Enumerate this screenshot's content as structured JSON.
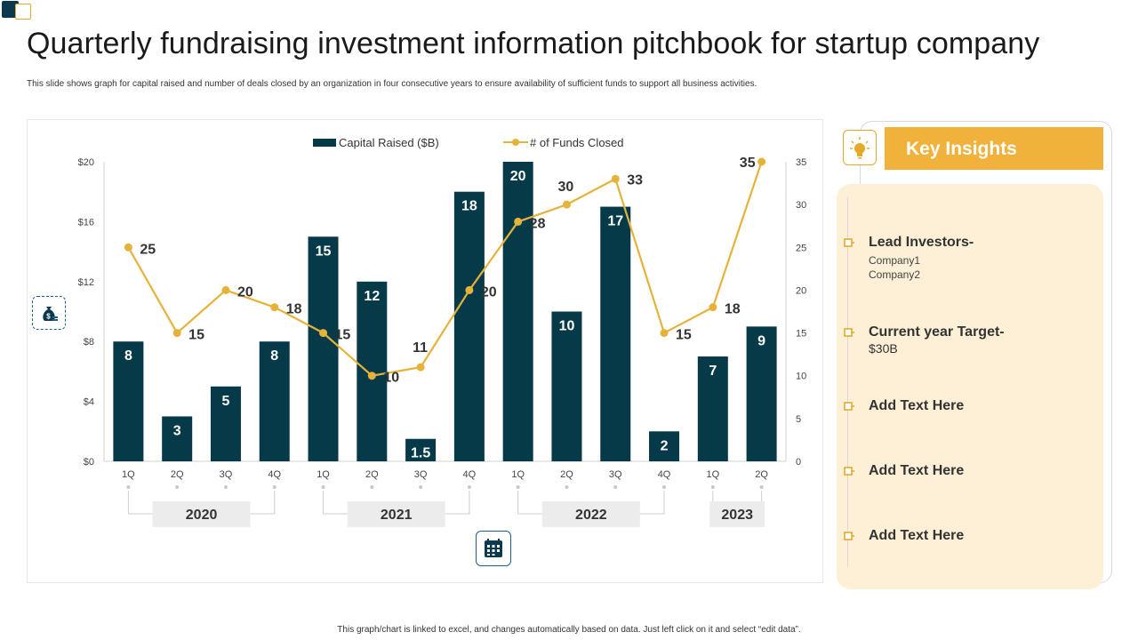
{
  "header": {
    "title": "Quarterly fundraising investment information pitchbook for startup company",
    "subtitle": "This slide shows graph for capital raised and number of deals closed by an organization in  four consecutive years to ensure availability of sufficient funds to support all business activities."
  },
  "footer": {
    "note": "This graph/chart is linked to excel, and changes automatically based on data. Just left click on it and select “edit data”."
  },
  "colors": {
    "bar": "#063a48",
    "line": "#e6b33a",
    "accent": "#f0b23a",
    "panel": "#fdf0d7"
  },
  "icons": {
    "side": "money-bag-icon",
    "calendar": "calendar-icon",
    "insight": "lightbulb-icon"
  },
  "chart_data": {
    "type": "bar",
    "title": "",
    "categories": [
      "1Q",
      "2Q",
      "3Q",
      "4Q",
      "1Q",
      "2Q",
      "3Q",
      "4Q",
      "1Q",
      "2Q",
      "3Q",
      "4Q",
      "1Q",
      "2Q"
    ],
    "groups": [
      {
        "label": "2020",
        "quarters": 4
      },
      {
        "label": "2021",
        "quarters": 4
      },
      {
        "label": "2022",
        "quarters": 4
      },
      {
        "label": "2023",
        "quarters": 2
      }
    ],
    "series": [
      {
        "name": "Capital Raised ($B)",
        "kind": "bar",
        "axis": "left",
        "values": [
          8,
          3,
          5,
          8,
          15,
          12,
          1.5,
          18,
          20,
          10,
          17,
          2,
          7,
          9
        ]
      },
      {
        "name": "# of Funds Closed",
        "kind": "line",
        "axis": "right",
        "values": [
          25,
          15,
          20,
          18,
          15,
          10,
          11,
          20,
          28,
          30,
          33,
          15,
          18,
          35
        ]
      }
    ],
    "bar_labels": [
      "8",
      "3",
      "5",
      "8",
      "15",
      "12",
      "1.5",
      "18",
      "20",
      "10",
      "17",
      "2",
      "7",
      "9"
    ],
    "line_labels": [
      "25",
      "15",
      "20",
      "18",
      "15",
      "10",
      "11",
      "20",
      "28",
      "30",
      "33",
      "15",
      "18",
      "35"
    ],
    "y_left": {
      "ticks": [
        "$0",
        "$4",
        "$8",
        "$12",
        "$16",
        "$20"
      ],
      "range": [
        0,
        20
      ]
    },
    "y_right": {
      "ticks": [
        "0",
        "5",
        "10",
        "15",
        "20",
        "25",
        "30",
        "35"
      ],
      "range": [
        0,
        35
      ]
    },
    "legend": {
      "placement": "top-center"
    }
  },
  "insights": {
    "title": "Key Insights",
    "items": [
      {
        "heading": "Lead Investors-",
        "lines": [
          "Company1",
          "Company2"
        ]
      },
      {
        "heading": "Current year Target-",
        "value": "$30B"
      },
      {
        "heading": "Add  Text Here"
      },
      {
        "heading": "Add  Text Here"
      },
      {
        "heading": "Add  Text Here"
      }
    ]
  }
}
